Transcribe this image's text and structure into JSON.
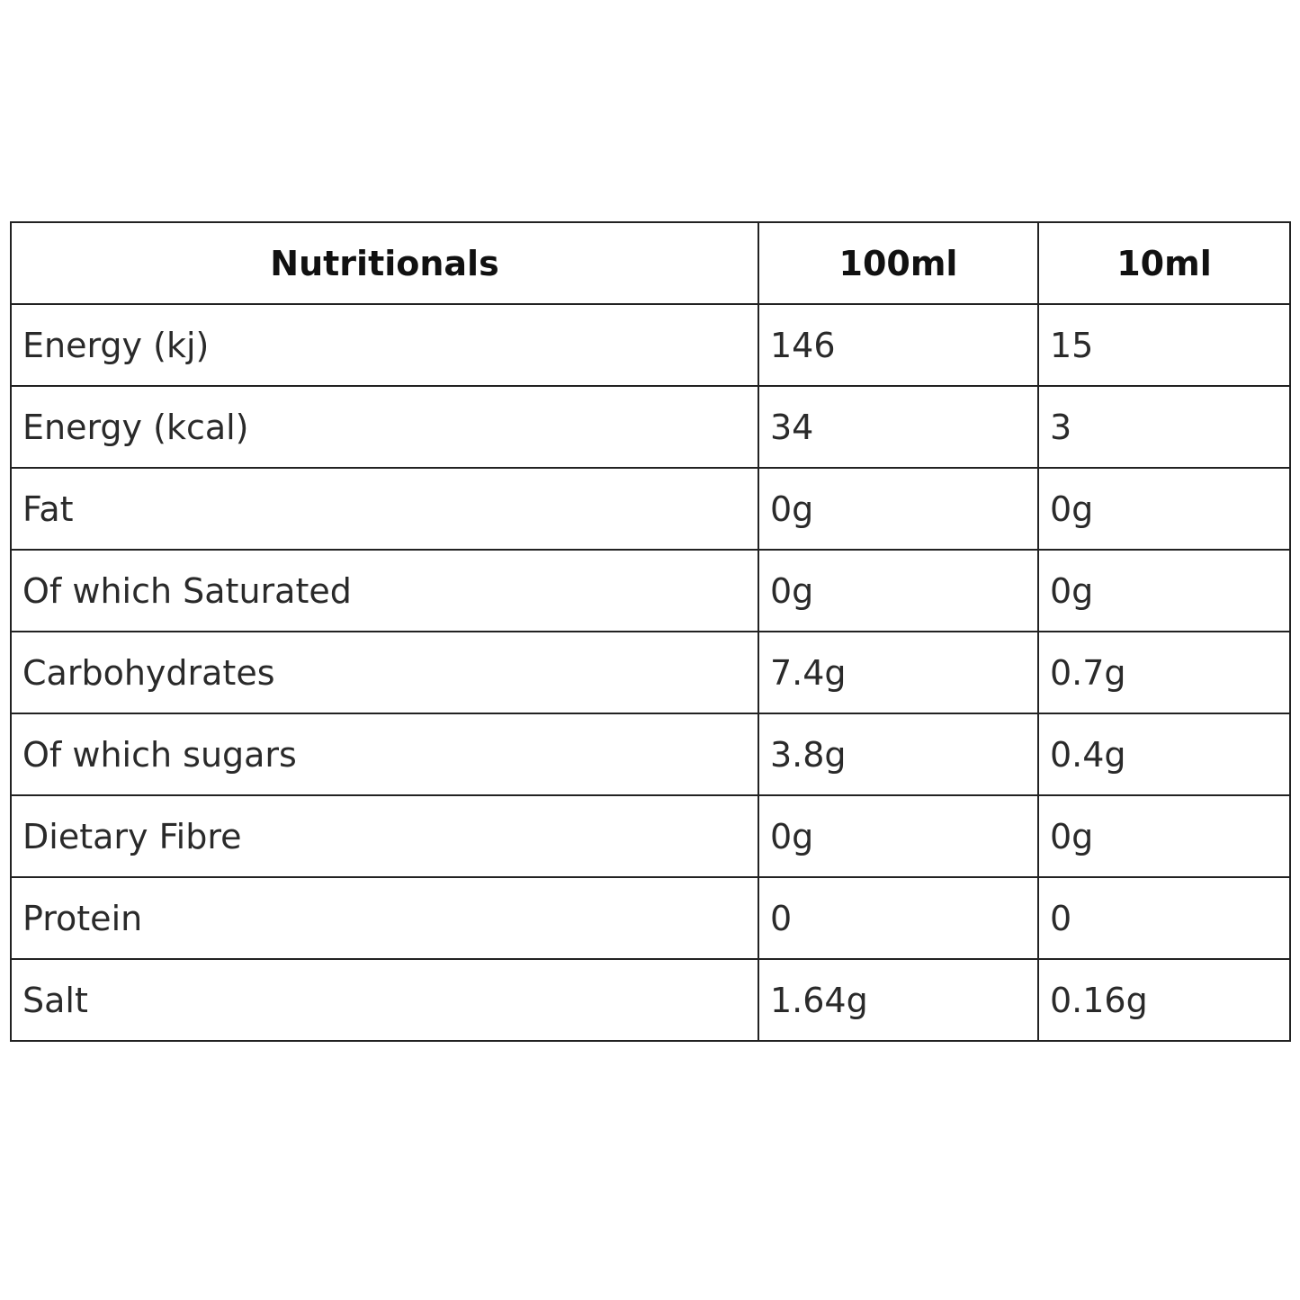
{
  "table": {
    "header": [
      "Nutritionals",
      "100ml",
      "10ml"
    ],
    "rows": [
      [
        "Energy (kj)",
        "146",
        "15"
      ],
      [
        "Energy (kcal)",
        "34",
        "3"
      ],
      [
        "Fat",
        "0g",
        "0g"
      ],
      [
        "Of which Saturated",
        "0g",
        "0g"
      ],
      [
        "Carbohydrates",
        "7.4g",
        "0.7g"
      ],
      [
        "Of which sugars",
        "3.8g",
        "0.4g"
      ],
      [
        "Dietary Fibre",
        "0g",
        "0g"
      ],
      [
        "Protein",
        "0",
        "0"
      ],
      [
        "Salt",
        "1.64g",
        "0.16g"
      ]
    ]
  }
}
